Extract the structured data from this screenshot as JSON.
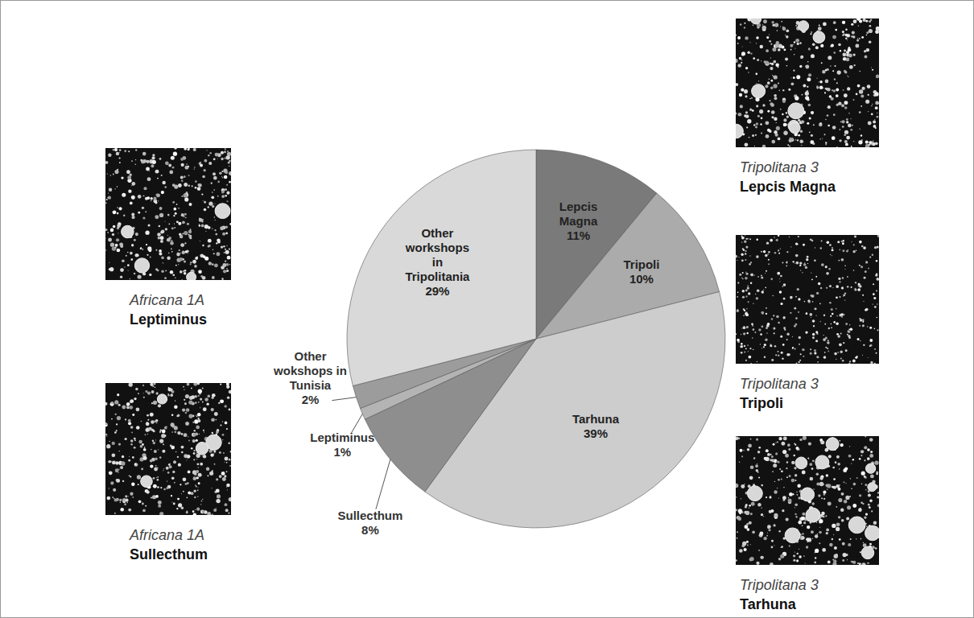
{
  "chart_data": {
    "type": "pie",
    "categories": [
      "Lepcis Magna",
      "Tripoli",
      "Tarhuna",
      "Sullecthum",
      "Leptiminus",
      "Other wokshops in Tunisia",
      "Other workshops in Tripolitania"
    ],
    "values": [
      11,
      10,
      39,
      8,
      1,
      2,
      29
    ],
    "value_labels": [
      "11%",
      "10%",
      "39%",
      "8%",
      "1%",
      "2%",
      "29%"
    ],
    "colors": [
      "#7a7a7a",
      "#ababab",
      "#cdcdcd",
      "#8e8e8e",
      "#b4b4b4",
      "#9c9c9c",
      "#d9d9d9"
    ],
    "data_labels": true
  },
  "micrographs": [
    {
      "type_label": "Africana 1A",
      "site": "Leptiminus"
    },
    {
      "type_label": "Africana 1A",
      "site": "Sullecthum"
    },
    {
      "type_label": "Tripolitana 3",
      "site": "Lepcis Magna"
    },
    {
      "type_label": "Tripolitana 3",
      "site": "Tripoli"
    },
    {
      "type_label": "Tripolitana 3",
      "site": "Tarhuna"
    }
  ]
}
